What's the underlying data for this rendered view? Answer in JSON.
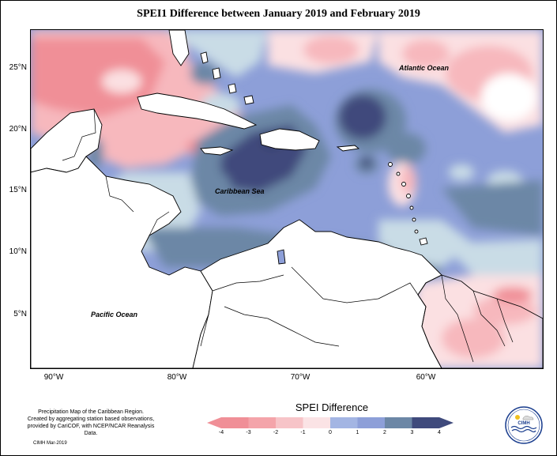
{
  "title": "SPEI1 Difference between January 2019 and February 2019",
  "map": {
    "latitude_labels": [
      "25°N",
      "20°N",
      "15°N",
      "10°N",
      "5°N"
    ],
    "longitude_labels": [
      "90°W",
      "80°W",
      "70°W",
      "60°W"
    ],
    "ocean_labels": {
      "atlantic": "Atlantic Ocean",
      "caribbean": "Caribbean Sea",
      "pacific": "Pacific Ocean"
    },
    "colors": {
      "strong_negative": "#f08f97",
      "negative": "#f7b8bd",
      "weak_negative": "#fbe0e2",
      "neutral": "#ffffff",
      "weak_positive": "#c9dce6",
      "positive": "#8d9fd8",
      "strong_positive": "#6c87a6",
      "very_strong_positive": "#3f4a7c",
      "land": "#ffffff"
    }
  },
  "legend": {
    "title": "SPEI Difference",
    "ticks": [
      "-4",
      "-3",
      "-2",
      "-1",
      "0",
      "1",
      "2",
      "3",
      "4"
    ],
    "colors": [
      "#f08f97",
      "#f4a4aa",
      "#f7c4c8",
      "#fbe3e5",
      "#d5e5ee",
      "#a3b5e3",
      "#8d9fd8",
      "#6c87a6",
      "#3f4a7c"
    ]
  },
  "footer": {
    "description_line1": "Precipitation Map of the Caribbean Region.",
    "description_line2": "Created by aggregating station based observations,",
    "description_line3": "provided by CariCOF, with NCEP/NCAR Reanalysis Data.",
    "credit": "CIMH Mar-2019",
    "logo_text": "CIMH"
  }
}
